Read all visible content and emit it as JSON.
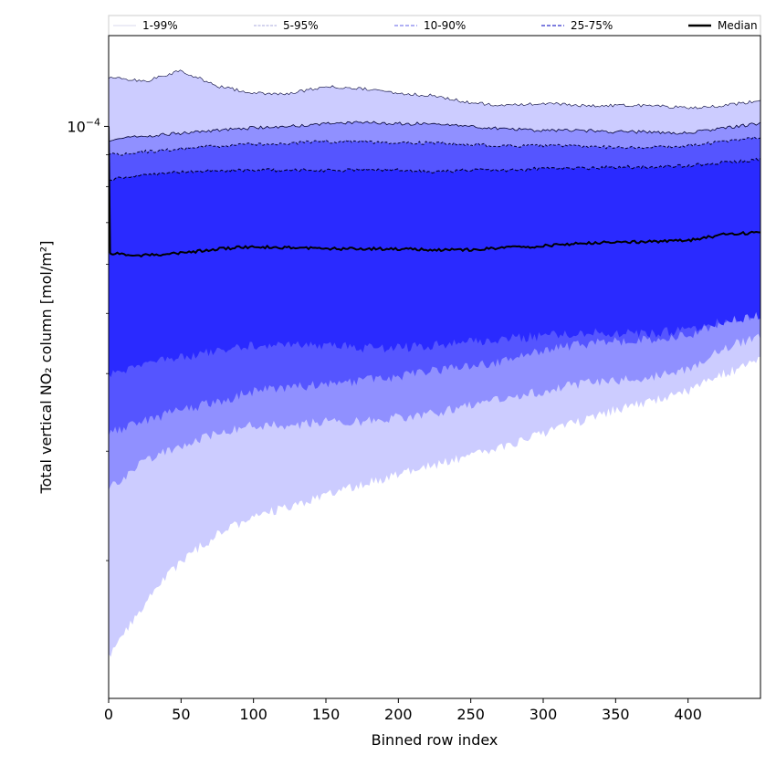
{
  "chart_data": {
    "type": "area",
    "title": "",
    "xlabel": "Binned row index",
    "ylabel": "Total vertical NO₂ column [mol/m²]",
    "y_scale": "log",
    "xlim": [
      0,
      450
    ],
    "ylim": [
      1.2e-05,
      0.00014
    ],
    "x_ticks": [
      0,
      50,
      100,
      150,
      200,
      250,
      300,
      350,
      400
    ],
    "y_major_tick": {
      "value": 0.0001,
      "label_base": "10",
      "label_exp": "−4"
    },
    "y_minor_ticks": [
      2e-05,
      3e-05,
      4e-05,
      5e-05,
      6e-05,
      7e-05,
      8e-05,
      9e-05
    ],
    "x_points": [
      0,
      25,
      50,
      75,
      100,
      125,
      150,
      175,
      200,
      225,
      250,
      275,
      300,
      325,
      350,
      375,
      400,
      425,
      450
    ],
    "bands": [
      {
        "name": "1-99%",
        "fill": "#ccccff",
        "lower": [
          1.4e-05,
          1.7e-05,
          2e-05,
          2.2e-05,
          2.35e-05,
          2.45e-05,
          2.55e-05,
          2.65e-05,
          2.75e-05,
          2.85e-05,
          2.95e-05,
          3.05e-05,
          3.2e-05,
          3.35e-05,
          3.5e-05,
          3.62e-05,
          3.75e-05,
          4e-05,
          4.2e-05
        ],
        "upper": [
          0.00012,
          0.000118,
          0.000123,
          0.000116,
          0.000113,
          0.000113,
          0.000116,
          0.000115,
          0.000113,
          0.000112,
          0.000109,
          0.000108,
          0.000109,
          0.000108,
          0.000108,
          0.000108,
          0.000107,
          0.000108,
          0.00011
        ]
      },
      {
        "name": "5-95%",
        "fill": "#9090ff",
        "lower": [
          2.6e-05,
          2.9e-05,
          3.05e-05,
          3.2e-05,
          3.3e-05,
          3.3e-05,
          3.35e-05,
          3.35e-05,
          3.4e-05,
          3.45e-05,
          3.55e-05,
          3.65e-05,
          3.75e-05,
          3.85e-05,
          3.9e-05,
          3.95e-05,
          4.05e-05,
          4.4e-05,
          4.6e-05
        ],
        "upper": [
          9.5e-05,
          9.65e-05,
          9.75e-05,
          9.85e-05,
          9.95e-05,
          0.0001,
          0.000101,
          0.0001015,
          0.000101,
          0.000101,
          0.0001,
          9.9e-05,
          9.85e-05,
          9.85e-05,
          9.8e-05,
          9.8e-05,
          9.75e-05,
          9.95e-05,
          0.000101
        ]
      },
      {
        "name": "10-90%",
        "fill": "#5555ff",
        "lower": [
          3.2e-05,
          3.35e-05,
          3.5e-05,
          3.6e-05,
          3.75e-05,
          3.8e-05,
          3.85e-05,
          3.9e-05,
          3.95e-05,
          4.05e-05,
          4.1e-05,
          4.2e-05,
          4.35e-05,
          4.45e-05,
          4.5e-05,
          4.55e-05,
          4.6e-05,
          4.85e-05,
          5e-05
        ],
        "upper": [
          9e-05,
          9.1e-05,
          9.2e-05,
          9.3e-05,
          9.35e-05,
          9.4e-05,
          9.45e-05,
          9.45e-05,
          9.4e-05,
          9.4e-05,
          9.35e-05,
          9.3e-05,
          9.3e-05,
          9.3e-05,
          9.25e-05,
          9.25e-05,
          9.3e-05,
          9.45e-05,
          9.6e-05
        ]
      },
      {
        "name": "25-75%",
        "fill": "#2a2aff",
        "lower": [
          4e-05,
          4.15e-05,
          4.25e-05,
          4.35e-05,
          4.45e-05,
          4.45e-05,
          4.45e-05,
          4.4e-05,
          4.4e-05,
          4.45e-05,
          4.5e-05,
          4.55e-05,
          4.6e-05,
          4.65e-05,
          4.65e-05,
          4.65e-05,
          4.7e-05,
          4.85e-05,
          4.95e-05
        ],
        "upper": [
          8.2e-05,
          8.35e-05,
          8.45e-05,
          8.5e-05,
          8.5e-05,
          8.5e-05,
          8.5e-05,
          8.5e-05,
          8.5e-05,
          8.45e-05,
          8.5e-05,
          8.5e-05,
          8.55e-05,
          8.55e-05,
          8.6e-05,
          8.6e-05,
          8.65e-05,
          8.75e-05,
          8.85e-05
        ]
      }
    ],
    "median": {
      "name": "Median",
      "color": "#000000",
      "start_value": 0.0001,
      "values": [
        6.25e-05,
        6.2e-05,
        6.25e-05,
        6.35e-05,
        6.4e-05,
        6.38e-05,
        6.35e-05,
        6.35e-05,
        6.35e-05,
        6.33e-05,
        6.33e-05,
        6.38e-05,
        6.42e-05,
        6.48e-05,
        6.52e-05,
        6.52e-05,
        6.55e-05,
        6.7e-05,
        6.75e-05
      ]
    },
    "legend": {
      "location": "top, above plot",
      "entries": [
        {
          "label": "1-99%",
          "color": "#d8d8ee",
          "style": "solid"
        },
        {
          "label": "5-95%",
          "color": "#a8a8dd",
          "style": "dashed"
        },
        {
          "label": "10-90%",
          "color": "#8080ee",
          "style": "dashed"
        },
        {
          "label": "25-75%",
          "color": "#3030cc",
          "style": "dashed"
        },
        {
          "label": "Median",
          "color": "#000000",
          "style": "solid"
        }
      ]
    }
  }
}
